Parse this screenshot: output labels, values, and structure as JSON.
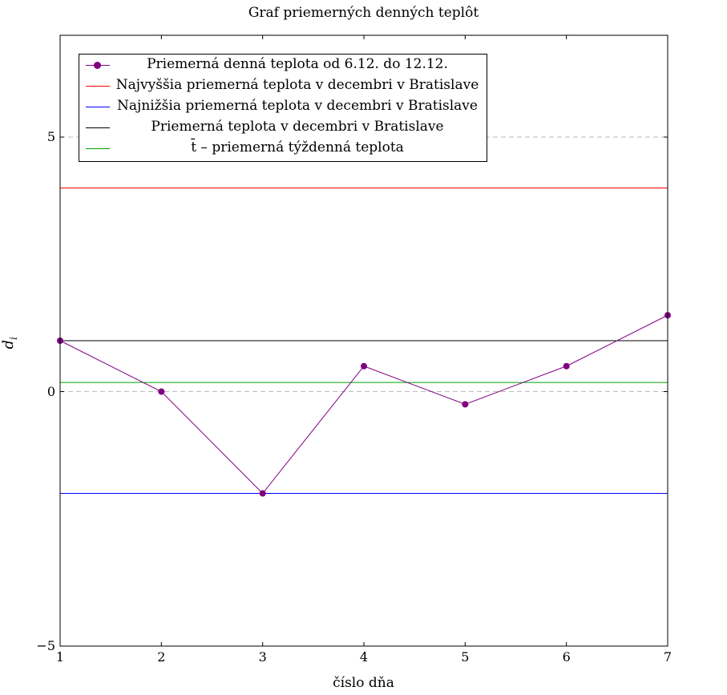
{
  "chart_data": {
    "type": "line",
    "title": "Graf priemerných denných teplôt",
    "xlabel": "číslo dňa",
    "ylabel_main": "d",
    "ylabel_sub": "i",
    "xlim": [
      1,
      7
    ],
    "ylim": [
      -5,
      7
    ],
    "x_ticks": [
      "1",
      "2",
      "3",
      "4",
      "5",
      "6",
      "7"
    ],
    "y_ticks": [
      {
        "value": 5,
        "label": "5"
      },
      {
        "value": 0,
        "label": "0"
      },
      {
        "value": -5,
        "label": "−5"
      }
    ],
    "grid": "dashed horizontal at y ticks",
    "legend_position": "top-left",
    "series": [
      {
        "name": "Priemerná denná teplota od 6.12. do 12.12.",
        "color": "#800080",
        "marker": "circle",
        "x": [
          1,
          2,
          3,
          4,
          5,
          6,
          7
        ],
        "values": [
          1,
          0,
          -2,
          0.5,
          -0.25,
          0.5,
          1.5
        ]
      },
      {
        "name": "Najvyššia priemerná teplota v decembri v Bratislave",
        "color": "#ff0000",
        "constant": 4
      },
      {
        "name": "Najnižšia priemerná teplota v decembri v Bratislave",
        "color": "#0000ff",
        "constant": -2
      },
      {
        "name": "Priemerná teplota v decembri v Bratislave",
        "color": "#000000",
        "constant": 1
      },
      {
        "name": "t̄ – priemerná týždenná teplota",
        "color": "#00a000",
        "constant": 0.18
      }
    ]
  }
}
